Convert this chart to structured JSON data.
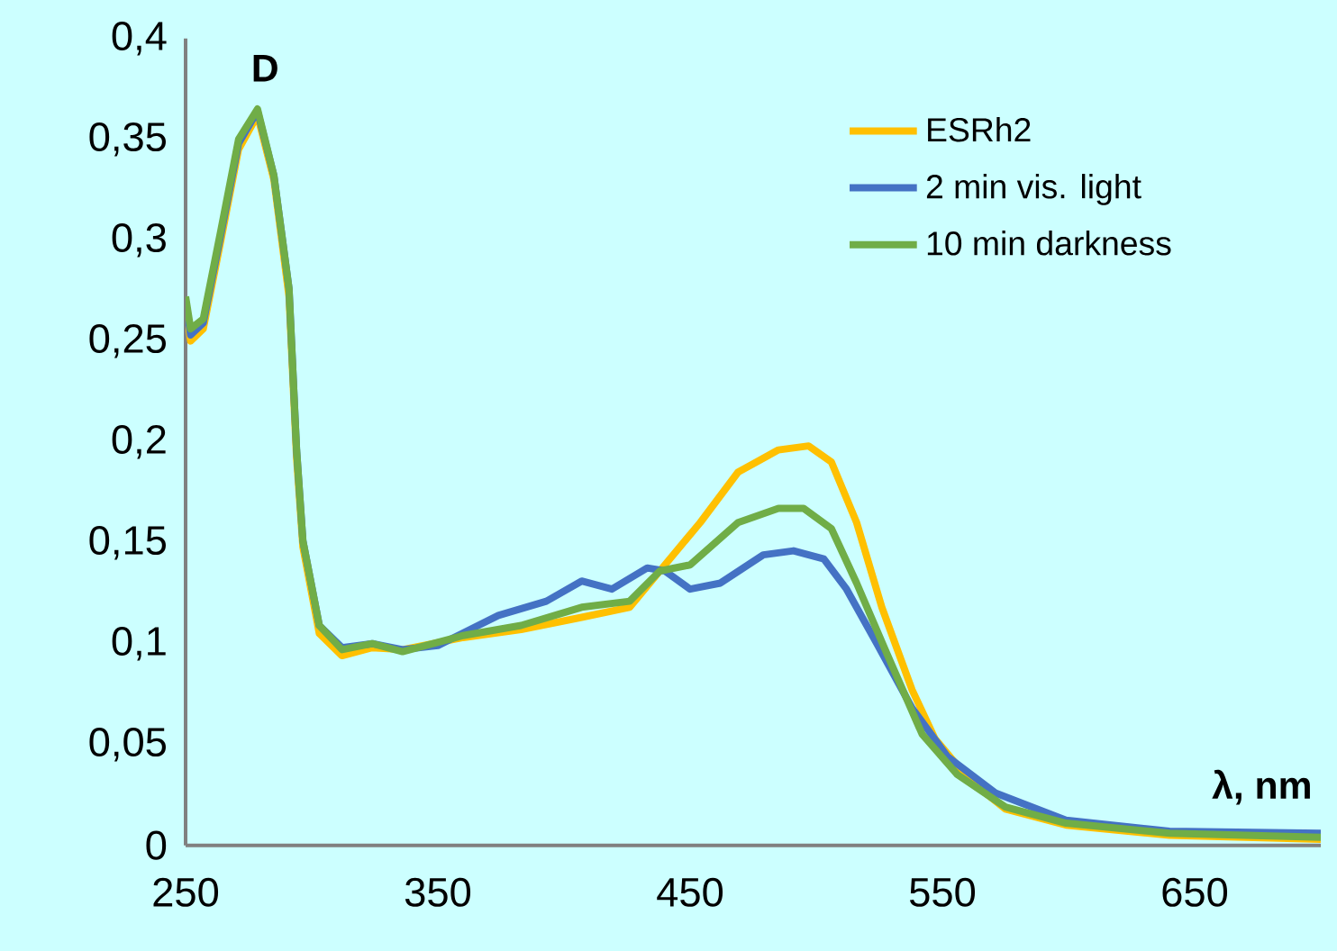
{
  "chart_data": {
    "type": "line",
    "xlabel": "λ, nm",
    "ylabel": "D",
    "xlim": [
      250,
      700
    ],
    "ylim": [
      0,
      0.4
    ],
    "xticks": [
      250,
      350,
      450,
      550,
      650
    ],
    "yticks": [
      0,
      {
        "value": 0.05,
        "label": "0,05"
      },
      {
        "value": 0.1,
        "label": "0,1"
      },
      {
        "value": 0.15,
        "label": "0,15"
      },
      {
        "value": 0.2,
        "label": "0,2"
      },
      {
        "value": 0.25,
        "label": "0,25"
      },
      {
        "value": 0.3,
        "label": "0,3"
      },
      {
        "value": 0.35,
        "label": "0,35"
      },
      {
        "value": 0.4,
        "label": "0,4"
      }
    ],
    "grid": false,
    "legend": "top right",
    "marker": "none",
    "line_style": "solid",
    "series": [
      {
        "name": "ESRh2",
        "color": "#ffc000",
        "x": [
          250,
          252,
          257,
          264,
          271,
          278.5,
          285,
          291,
          294,
          296.5,
          303,
          312,
          324,
          336,
          360,
          383,
          407,
          426,
          438,
          454,
          469,
          485,
          497,
          506,
          516,
          526,
          538,
          547,
          561,
          575,
          599,
          640,
          700
        ],
        "values": [
          0.268,
          0.25,
          0.256,
          0.3,
          0.345,
          0.362,
          0.33,
          0.272,
          0.192,
          0.148,
          0.105,
          0.094,
          0.098,
          0.097,
          0.103,
          0.107,
          0.113,
          0.118,
          0.136,
          0.16,
          0.185,
          0.196,
          0.198,
          0.19,
          0.16,
          0.118,
          0.077,
          0.053,
          0.032,
          0.018,
          0.01,
          0.005,
          0.003
        ]
      },
      {
        "name": "2 min vis. light",
        "color": "#4472c4",
        "x": [
          250,
          252,
          257,
          264,
          271,
          278.5,
          285,
          291,
          294,
          296.5,
          303,
          312,
          324,
          336,
          350,
          374,
          393,
          407,
          419,
          433,
          440,
          450,
          462,
          479,
          491,
          503,
          512,
          524,
          538,
          552,
          571,
          599,
          640,
          700
        ],
        "values": [
          0.27,
          0.253,
          0.259,
          0.303,
          0.348,
          0.364,
          0.332,
          0.276,
          0.196,
          0.151,
          0.109,
          0.098,
          0.1,
          0.097,
          0.099,
          0.114,
          0.121,
          0.131,
          0.127,
          0.1375,
          0.136,
          0.127,
          0.13,
          0.144,
          0.146,
          0.142,
          0.127,
          0.1,
          0.068,
          0.044,
          0.026,
          0.0125,
          0.007,
          0.006
        ]
      },
      {
        "name": "10 min darkness",
        "color": "#70ad47",
        "x": [
          250,
          252,
          257,
          264,
          271,
          278.5,
          285,
          291,
          294,
          296.5,
          303,
          312,
          324,
          336,
          360,
          383,
          407,
          426,
          438,
          450,
          469,
          485,
          495,
          506,
          516,
          528,
          542,
          556,
          575,
          599,
          640,
          700
        ],
        "values": [
          0.272,
          0.256,
          0.261,
          0.305,
          0.35,
          0.365,
          0.332,
          0.276,
          0.196,
          0.151,
          0.109,
          0.097,
          0.1,
          0.096,
          0.104,
          0.109,
          0.118,
          0.121,
          0.136,
          0.139,
          0.16,
          0.167,
          0.167,
          0.157,
          0.13,
          0.095,
          0.055,
          0.035,
          0.019,
          0.011,
          0.006,
          0.004
        ]
      }
    ]
  }
}
